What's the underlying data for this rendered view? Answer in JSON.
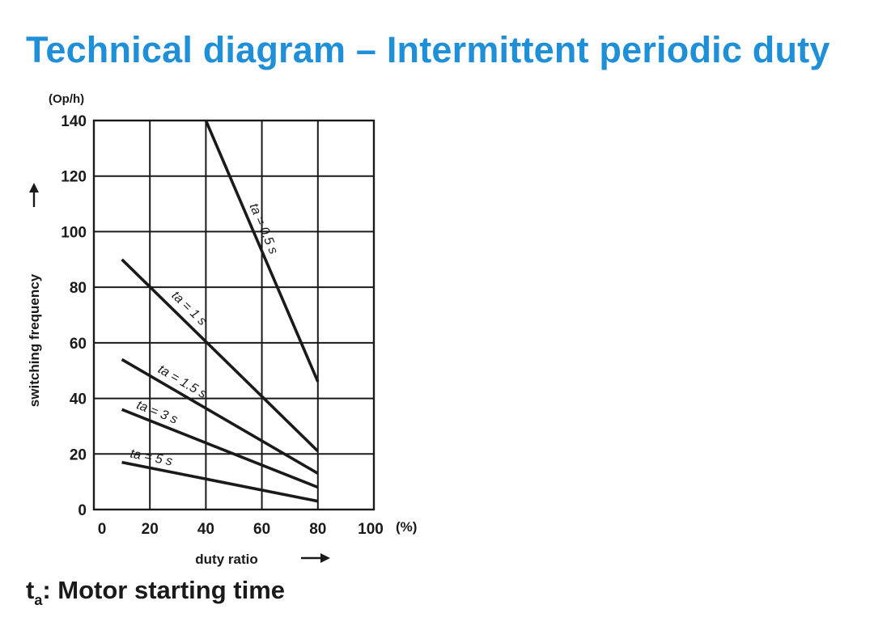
{
  "page": {
    "title": "Technical diagram – Intermittent periodic duty",
    "footnote": {
      "symbol": "t",
      "subscript": "a",
      "text": ": Motor starting time"
    }
  },
  "colors": {
    "title": "#1f8fd8",
    "ink": "#1a1a1a"
  },
  "chart_data": {
    "type": "line",
    "title": "",
    "xlabel": "duty ratio",
    "ylabel": "switching frequency",
    "x_unit": "(%)",
    "y_unit": "(Op/h)",
    "xlim": [
      0,
      100
    ],
    "ylim": [
      0,
      140
    ],
    "x_ticks": [
      0,
      20,
      40,
      60,
      80,
      100
    ],
    "y_ticks": [
      0,
      20,
      40,
      60,
      80,
      100,
      120,
      140
    ],
    "grid": true,
    "series": [
      {
        "name": "ta = 0.5 s",
        "x": [
          40,
          80
        ],
        "y": [
          140,
          46
        ]
      },
      {
        "name": "ta = 1 s",
        "x": [
          10,
          80
        ],
        "y": [
          90,
          21
        ]
      },
      {
        "name": "ta = 1.5 s",
        "x": [
          10,
          80
        ],
        "y": [
          54,
          13
        ]
      },
      {
        "name": "ta = 3 s",
        "x": [
          10,
          80
        ],
        "y": [
          36,
          8
        ]
      },
      {
        "name": "ta = 5 s",
        "x": [
          10,
          80
        ],
        "y": [
          17,
          3
        ]
      }
    ]
  }
}
